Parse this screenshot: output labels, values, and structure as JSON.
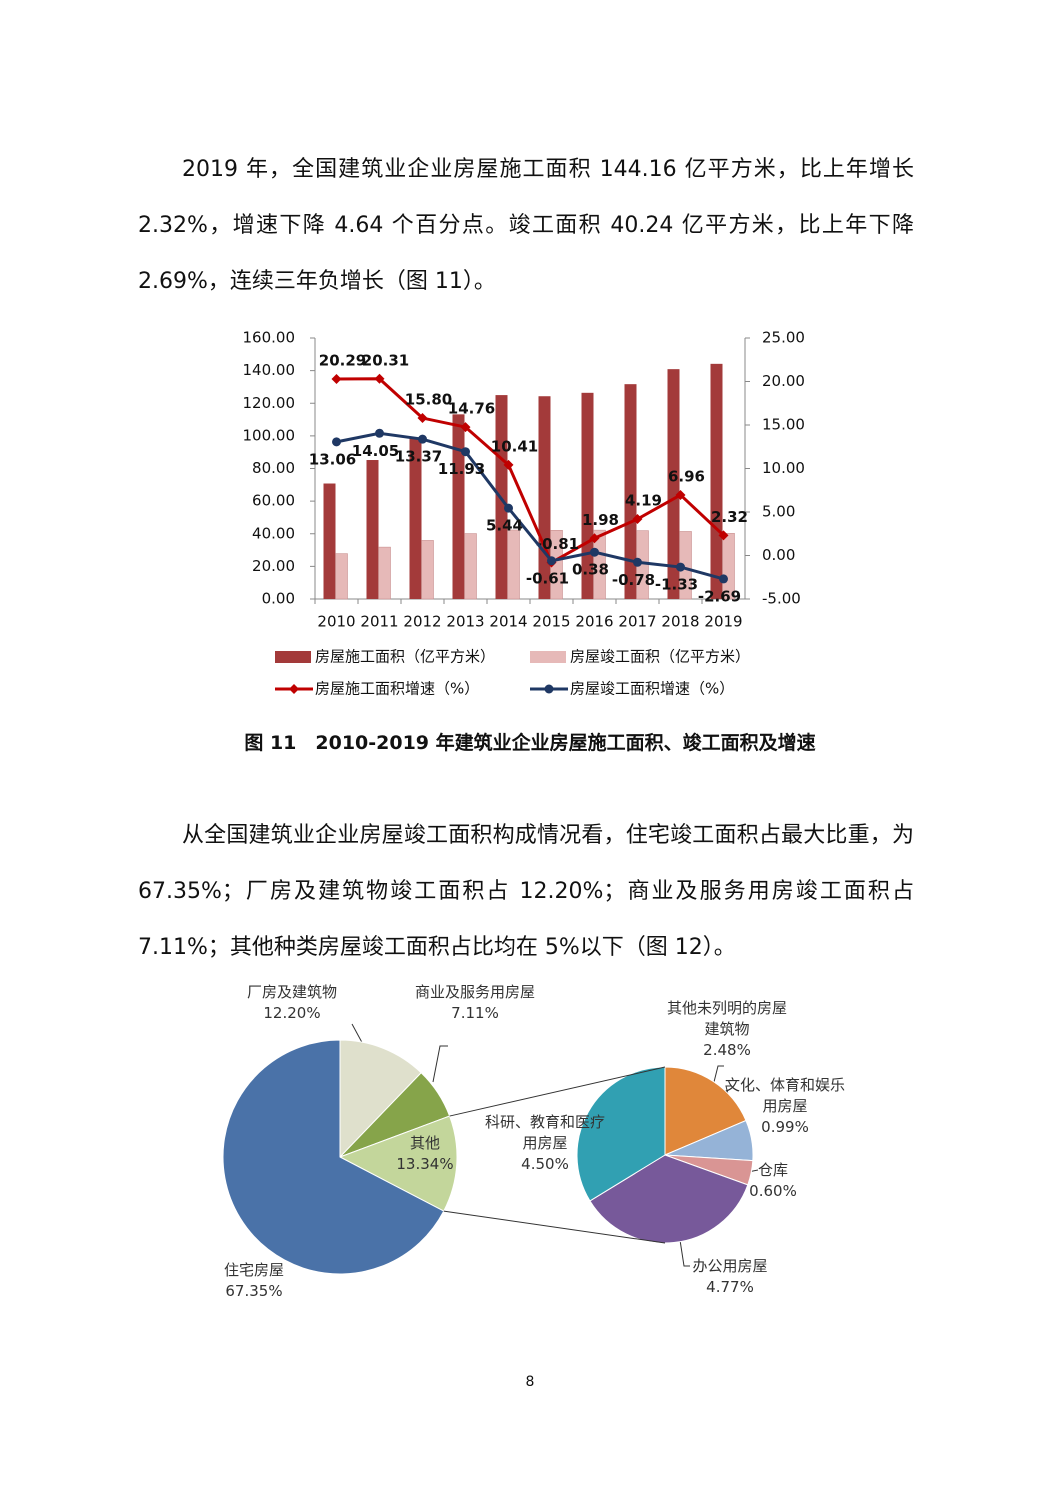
{
  "paragraphs": [
    "2019 年，全国建筑业企业房屋施工面积 144.16 亿平方米，比上年增长 2.32%，增速下降 4.64 个百分点。竣工面积 40.24 亿平方米，比上年下降 2.69%，连续三年负增长（图 11）。",
    "从全国建筑业企业房屋竣工面积构成情况看，住宅竣工面积占最大比重，为 67.35%；厂房及建筑物竣工面积占 12.20%；商业及服务用房竣工面积占 7.11%；其他种类房屋竣工面积占比均在 5%以下（图 12）。"
  ],
  "chart_data": [
    {
      "type": "combo",
      "caption": "图 11　2010-2019 年建筑业企业房屋施工面积、竣工面积及增速",
      "categories": [
        "2010",
        "2011",
        "2012",
        "2013",
        "2014",
        "2015",
        "2016",
        "2017",
        "2018",
        "2019"
      ],
      "series": [
        {
          "name": "房屋施工面积（亿平方米）",
          "type": "bar",
          "color": "#a33a3a",
          "values": [
            70.8,
            85.2,
            98.6,
            113.2,
            125.0,
            124.3,
            126.4,
            131.7,
            140.9,
            144.16
          ]
        },
        {
          "name": "房屋竣工面积（亿平方米）",
          "type": "bar",
          "color": "#e6b9b8",
          "values": [
            27.8,
            31.8,
            35.9,
            40.1,
            42.3,
            42.1,
            42.2,
            41.9,
            41.4,
            40.24
          ]
        },
        {
          "name": "房屋施工面积增速（%）",
          "type": "line",
          "axis": "y2",
          "color": "#c00000",
          "values": [
            20.29,
            20.31,
            15.8,
            14.76,
            10.41,
            -0.81,
            1.98,
            4.19,
            6.96,
            2.32
          ],
          "value_labels": [
            "20.29",
            "20.31",
            "15.80",
            "14.76",
            "10.41",
            "-0.81",
            "1.98",
            "4.19",
            "6.96",
            "2.32"
          ]
        },
        {
          "name": "房屋竣工面积增速（%）",
          "type": "line",
          "axis": "y2",
          "color": "#1f3864",
          "values": [
            13.06,
            14.05,
            13.37,
            11.93,
            5.44,
            -0.61,
            0.38,
            -0.78,
            -1.33,
            -2.69
          ],
          "value_labels": [
            "13.06",
            "14.05",
            "13.37",
            "11.93",
            "5.44",
            "-0.61",
            "0.38",
            "-0.78",
            "-1.33",
            "-2.69"
          ]
        }
      ],
      "ylim": [
        0,
        160
      ],
      "yticks": [
        {
          "value": 0,
          "label": "0.00"
        },
        {
          "value": 20,
          "label": "20.00"
        },
        {
          "value": 40,
          "label": "40.00"
        },
        {
          "value": 60,
          "label": "60.00"
        },
        {
          "value": 80,
          "label": "80.00"
        },
        {
          "value": 100,
          "label": "100.00"
        },
        {
          "value": 120,
          "label": "120.00"
        },
        {
          "value": 140,
          "label": "140.00"
        },
        {
          "value": 160,
          "label": "160.00"
        }
      ],
      "y2lim": [
        -5,
        25
      ],
      "y2ticks": [
        {
          "value": -5,
          "label": "-5.00"
        },
        {
          "value": 0,
          "label": "0.00"
        },
        {
          "value": 5,
          "label": "5.00"
        },
        {
          "value": 10,
          "label": "10.00"
        },
        {
          "value": 15,
          "label": "15.00"
        },
        {
          "value": 20,
          "label": "20.00"
        },
        {
          "value": 25,
          "label": "25.00"
        }
      ]
    },
    {
      "type": "pie-of-pie",
      "categories": [
        "厂房及建筑物",
        "商业及服务用房屋",
        "其他",
        "住宅房屋"
      ],
      "values": [
        12.2,
        7.11,
        13.34,
        67.35
      ],
      "value_labels": [
        "12.20%",
        "7.11%",
        "13.34%",
        "67.35%"
      ],
      "colors": [
        "#dfe0cc",
        "#86a44a",
        "#c3d69b",
        "#4a72a8"
      ],
      "detail": {
        "categories": [
          "其他未列明的房屋建筑物",
          "文化、体育和娱乐用房屋",
          "仓库",
          "办公用房屋",
          "科研、教育和医疗用房屋"
        ],
        "values": [
          2.48,
          0.99,
          0.6,
          4.77,
          4.5
        ],
        "value_labels": [
          "2.48%",
          "0.99%",
          "0.60%",
          "4.77%",
          "4.50%"
        ],
        "colors": [
          "#e0873a",
          "#95b3d7",
          "#d99594",
          "#77599a",
          "#31a0b2"
        ]
      }
    }
  ],
  "page_number": "8"
}
